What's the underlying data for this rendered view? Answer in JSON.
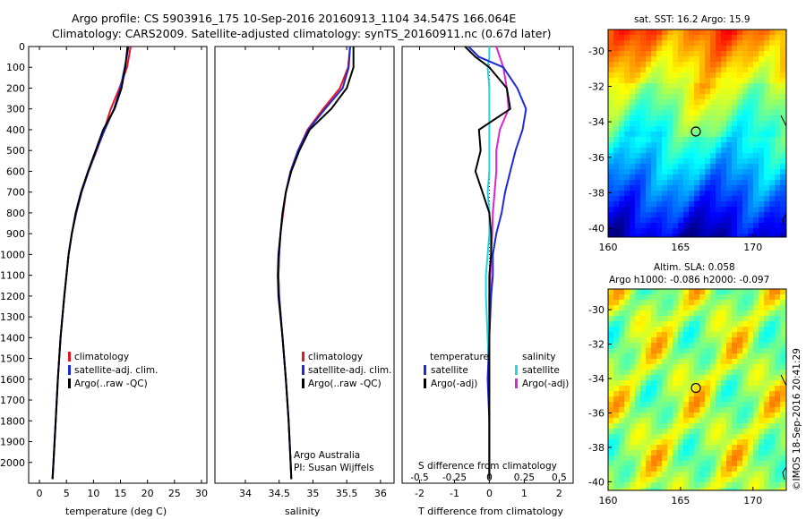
{
  "header": {
    "line1": "Argo profile: CS 5903916_175 10-Sep-2016 20160913_1104 34.547S 166.064E",
    "line2": "Climatology: CARS2009. Satellite-adjusted climatology: synTS_20160911.nc (0.67d later)"
  },
  "colors": {
    "climatology": "#e8141e",
    "satellite": "#1c2ad8",
    "argo": "#000000",
    "sal_satellite": "#22d6e0",
    "sal_argo": "#d626d6"
  },
  "chart_data": [
    {
      "type": "line",
      "panel": "temperature",
      "xlabel": "temperature (deg C)",
      "ylabel": "",
      "xlim": [
        -2,
        31
      ],
      "ylim": [
        2100,
        0
      ],
      "xticks": [
        "0",
        "5",
        "10",
        "15",
        "20",
        "25",
        "30"
      ],
      "yticks": [
        "0",
        "100",
        "200",
        "300",
        "400",
        "500",
        "600",
        "700",
        "800",
        "900",
        "1000",
        "1100",
        "1200",
        "1300",
        "1400",
        "1500",
        "1600",
        "1700",
        "1800",
        "1900",
        "2000"
      ],
      "legend": [
        "climatology",
        "satellite-adj. clim.",
        "Argo(..raw -QC)"
      ],
      "depth": [
        0,
        100,
        200,
        300,
        400,
        500,
        600,
        700,
        800,
        900,
        1000,
        1200,
        1400,
        1600,
        1800,
        2000,
        2080
      ],
      "series": [
        {
          "name": "climatology",
          "values": [
            16.9,
            16.2,
            14.8,
            13.2,
            12.0,
            10.6,
            9.1,
            7.8,
            6.8,
            6.0,
            5.4,
            4.6,
            3.9,
            3.4,
            3.0,
            2.6,
            2.45
          ]
        },
        {
          "name": "satellite-adj. clim.",
          "values": [
            16.5,
            15.8,
            15.0,
            13.8,
            12.1,
            10.5,
            9.1,
            7.8,
            6.8,
            6.0,
            5.4,
            4.6,
            3.9,
            3.4,
            3.0,
            2.6,
            2.45
          ]
        },
        {
          "name": "Argo(..raw -QC)",
          "values": [
            16.3,
            15.9,
            15.2,
            13.9,
            11.8,
            10.4,
            9.0,
            7.7,
            6.7,
            6.0,
            5.4,
            4.6,
            3.9,
            3.4,
            3.0,
            2.6,
            2.4
          ]
        }
      ]
    },
    {
      "type": "line",
      "panel": "salinity",
      "xlabel": "salinity",
      "xlim": [
        33.55,
        36.2
      ],
      "ylim": [
        2100,
        0
      ],
      "xticks": [
        "34",
        "34.5",
        "35",
        "35.5",
        "36"
      ],
      "legend": [
        "climatology",
        "satellite-adj. clim.",
        "Argo(..raw -QC)"
      ],
      "annotation": [
        "Argo Australia",
        "PI: Susan Wijffels"
      ],
      "depth": [
        0,
        100,
        200,
        300,
        400,
        500,
        600,
        700,
        800,
        900,
        1000,
        1100,
        1200,
        1400,
        1600,
        1800,
        2000,
        2080
      ],
      "series": [
        {
          "name": "climatology",
          "values": [
            35.55,
            35.52,
            35.4,
            35.15,
            34.92,
            34.78,
            34.67,
            34.6,
            34.56,
            34.52,
            34.5,
            34.49,
            34.5,
            34.55,
            34.6,
            34.64,
            34.67,
            34.68
          ]
        },
        {
          "name": "satellite-adj. clim.",
          "values": [
            35.55,
            35.53,
            35.44,
            35.18,
            34.93,
            34.78,
            34.67,
            34.6,
            34.55,
            34.52,
            34.5,
            34.49,
            34.5,
            34.55,
            34.6,
            34.64,
            34.67,
            34.68
          ]
        },
        {
          "name": "Argo(..raw -QC)",
          "values": [
            35.6,
            35.6,
            35.5,
            35.27,
            34.95,
            34.8,
            34.68,
            34.6,
            34.55,
            34.52,
            34.49,
            34.48,
            34.49,
            34.55,
            34.6,
            34.64,
            34.67,
            34.68
          ]
        }
      ]
    },
    {
      "type": "line",
      "panel": "difference",
      "xlabel": "T difference from climatology",
      "xlabel_top": "S difference from climatology",
      "xlim": [
        -2.5,
        2.4
      ],
      "ylim": [
        2100,
        0
      ],
      "xticks": [
        "-2",
        "-1",
        "0",
        "1",
        "2"
      ],
      "xticks_s": [
        "-0.5",
        "-0.25",
        "0",
        "0.25",
        "0.5"
      ],
      "legend_titles": [
        "temperature",
        "salinity"
      ],
      "legend": [
        "satellite",
        "Argo(-adj)",
        "satellite",
        "Argo(-adj)"
      ],
      "depth": [
        0,
        50,
        100,
        200,
        300,
        400,
        500,
        600,
        700,
        800,
        900,
        1000,
        1100,
        1200,
        1400,
        1600,
        1800,
        2000,
        2080
      ],
      "series": [
        {
          "name": "satellite",
          "values": [
            -0.6,
            -0.3,
            0.4,
            0.8,
            1.05,
            0.95,
            0.75,
            0.6,
            0.45,
            0.35,
            0.2,
            0.1,
            0.1,
            0.05,
            0.0,
            -0.05,
            0.0,
            0.0,
            0.0
          ]
        },
        {
          "name": "Argo(-adj)",
          "values": [
            -0.7,
            -0.4,
            0.0,
            0.5,
            0.6,
            -0.3,
            -0.25,
            -0.4,
            -0.2,
            0.0,
            0.05,
            0.05,
            0.0,
            0.0,
            0.0,
            0.0,
            0.0,
            0.0,
            0.0
          ]
        },
        {
          "name": "satellite",
          "values": [
            0.0,
            0.0,
            -0.05,
            0.0,
            0.0,
            0.0,
            0.0,
            0.0,
            -0.05,
            0.0,
            0.0,
            -0.05,
            -0.1,
            -0.1,
            -0.05,
            0.0,
            0.0,
            0.0,
            0.0
          ]
        },
        {
          "name": "Argo(-adj)",
          "values": [
            0.2,
            0.3,
            0.4,
            0.5,
            0.55,
            0.3,
            0.2,
            0.2,
            0.15,
            0.1,
            0.08,
            0.05,
            0.03,
            0.02,
            0.0,
            0.0,
            0.0,
            0.0,
            0.0
          ]
        }
      ]
    },
    {
      "type": "heatmap",
      "panel": "sst_map",
      "title": "sat. SST: 16.2 Argo: 15.9",
      "xlim": [
        160,
        172.3
      ],
      "ylim": [
        -40.5,
        -28.8
      ],
      "xticks": [
        "160",
        "165",
        "170"
      ],
      "yticks": [
        "-30",
        "-32",
        "-34",
        "-36",
        "-38",
        "-40"
      ],
      "marker": {
        "lon": 166.06,
        "lat": -34.55
      }
    },
    {
      "type": "heatmap",
      "panel": "sla_map",
      "title": "Altim. SLA: 0.058",
      "subtitle": "Argo h1000: -0.086 h2000: -0.097",
      "xlim": [
        160,
        172.3
      ],
      "ylim": [
        -40.5,
        -28.8
      ],
      "xticks": [
        "160",
        "165",
        "170"
      ],
      "yticks": [
        "-30",
        "-32",
        "-34",
        "-36",
        "-38",
        "-40"
      ],
      "marker": {
        "lon": 166.06,
        "lat": -34.55
      }
    }
  ],
  "footer": {
    "stamp": "©IMOS 18-Sep-2016 20:41:29"
  }
}
